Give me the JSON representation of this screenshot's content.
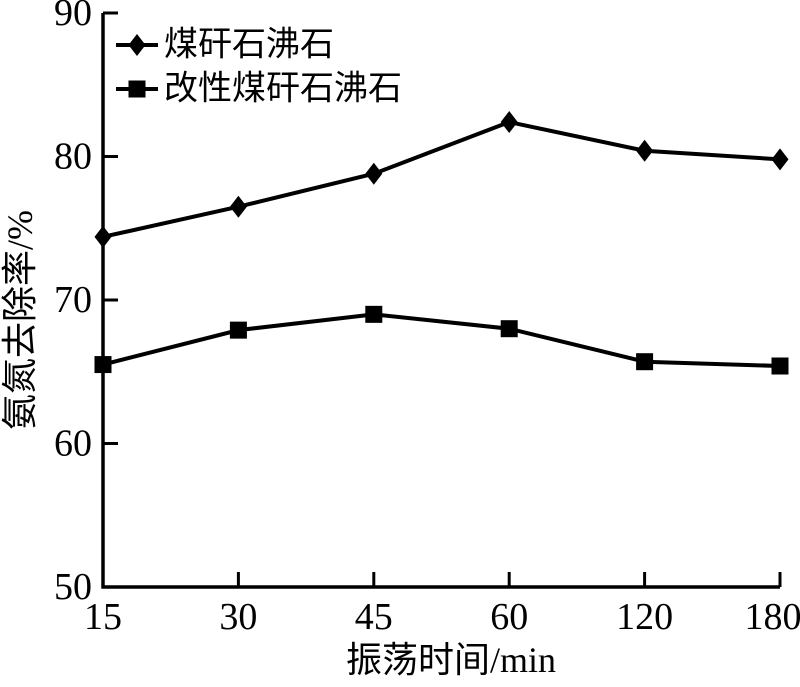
{
  "figure": {
    "background_color": "#ffffff",
    "line_color": "#000000",
    "text_color": "#000000"
  },
  "chart_data": {
    "type": "line",
    "title": "",
    "xlabel": "振荡时间/min",
    "ylabel": "氨氮去除率/%",
    "x_categories": [
      "15",
      "30",
      "45",
      "60",
      "120",
      "180"
    ],
    "y_tick_labels": [
      "90",
      "80",
      "70",
      "60",
      "50"
    ],
    "ylim": [
      50,
      90
    ],
    "grid": false,
    "legend_position": "top-left-inside",
    "series": [
      {
        "name": "煤矸石沸石",
        "marker": "diamond",
        "color": "#000000",
        "values": [
          74.4,
          76.5,
          78.8,
          82.4,
          80.4,
          79.8
        ]
      },
      {
        "name": "改性煤矸石沸石",
        "marker": "square",
        "color": "#000000",
        "values": [
          65.5,
          67.9,
          69.0,
          68.0,
          65.7,
          65.4
        ]
      }
    ]
  }
}
